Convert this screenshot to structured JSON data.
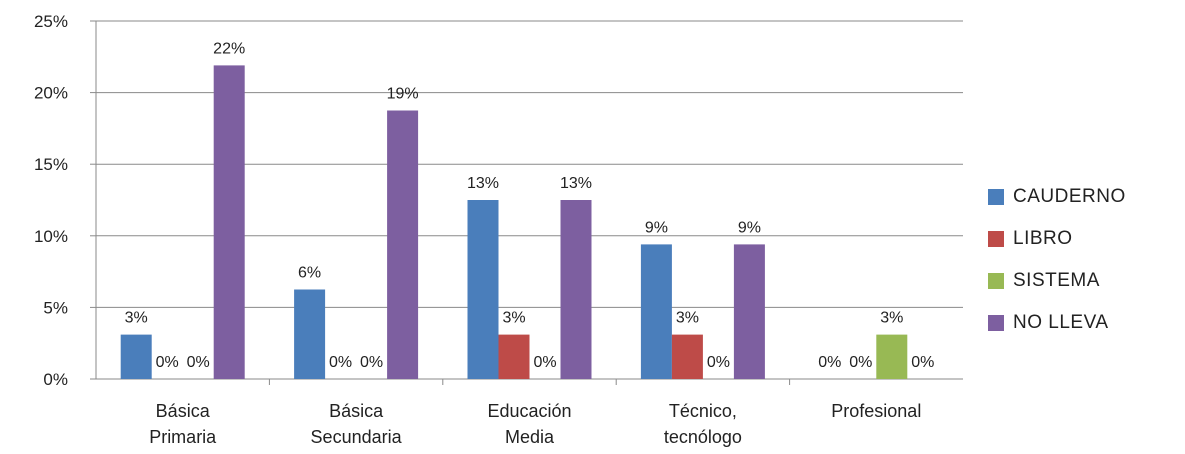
{
  "chart_data": {
    "type": "bar",
    "categories": [
      [
        "Básica",
        "Primaria"
      ],
      [
        "Básica",
        "Secundaria"
      ],
      [
        "Educación",
        "Media"
      ],
      [
        "Técnico,",
        "tecnólogo"
      ],
      [
        "Profesional"
      ]
    ],
    "ylim": [
      0,
      0.25
    ],
    "yticks": [
      "0%",
      "5%",
      "10%",
      "15%",
      "20%",
      "25%"
    ],
    "grid": true,
    "legend_position": "right",
    "series": [
      {
        "name": "CAUDERNO",
        "color": "#4a7ebb",
        "values": [
          0.031,
          0.0625,
          0.125,
          0.094,
          0
        ],
        "labels": [
          "3%",
          "6%",
          "13%",
          "9%",
          "0%"
        ]
      },
      {
        "name": "LIBRO",
        "color": "#be4b48",
        "values": [
          0,
          0,
          0.031,
          0.031,
          0
        ],
        "labels": [
          "0%",
          "0%",
          "3%",
          "3%",
          "0%"
        ]
      },
      {
        "name": "SISTEMA",
        "color": "#98b954",
        "values": [
          0,
          0,
          0,
          0,
          0.031
        ],
        "labels": [
          "0%",
          "0%",
          "0%",
          "0%",
          "3%"
        ]
      },
      {
        "name": "NO LLEVA",
        "color": "#7d5fa0",
        "values": [
          0.219,
          0.1875,
          0.125,
          0.094,
          0
        ],
        "labels": [
          "22%",
          "19%",
          "13%",
          "9%",
          "0%"
        ]
      }
    ]
  }
}
